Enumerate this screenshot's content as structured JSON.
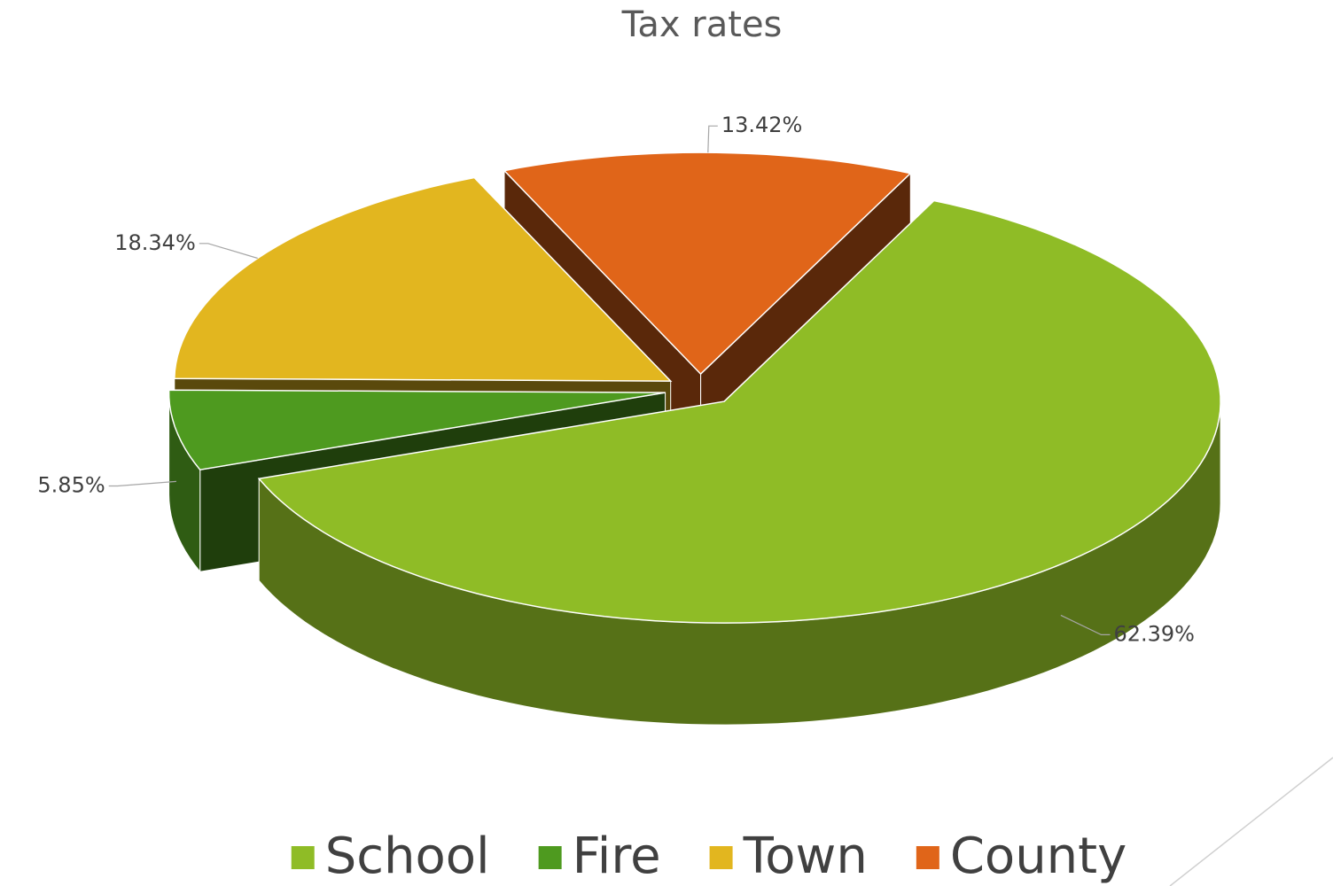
{
  "chart_data": {
    "type": "pie",
    "title": "Tax rates",
    "categories": [
      "School",
      "Fire",
      "Town",
      "County"
    ],
    "values": [
      62.39,
      5.85,
      18.34,
      13.42
    ],
    "value_labels": [
      "62.39%",
      "5.85%",
      "18.34%",
      "13.42%"
    ],
    "colors": [
      "#8fbc26",
      "#4e9a1f",
      "#e2b61f",
      "#e06519"
    ],
    "legend": "bottom"
  }
}
